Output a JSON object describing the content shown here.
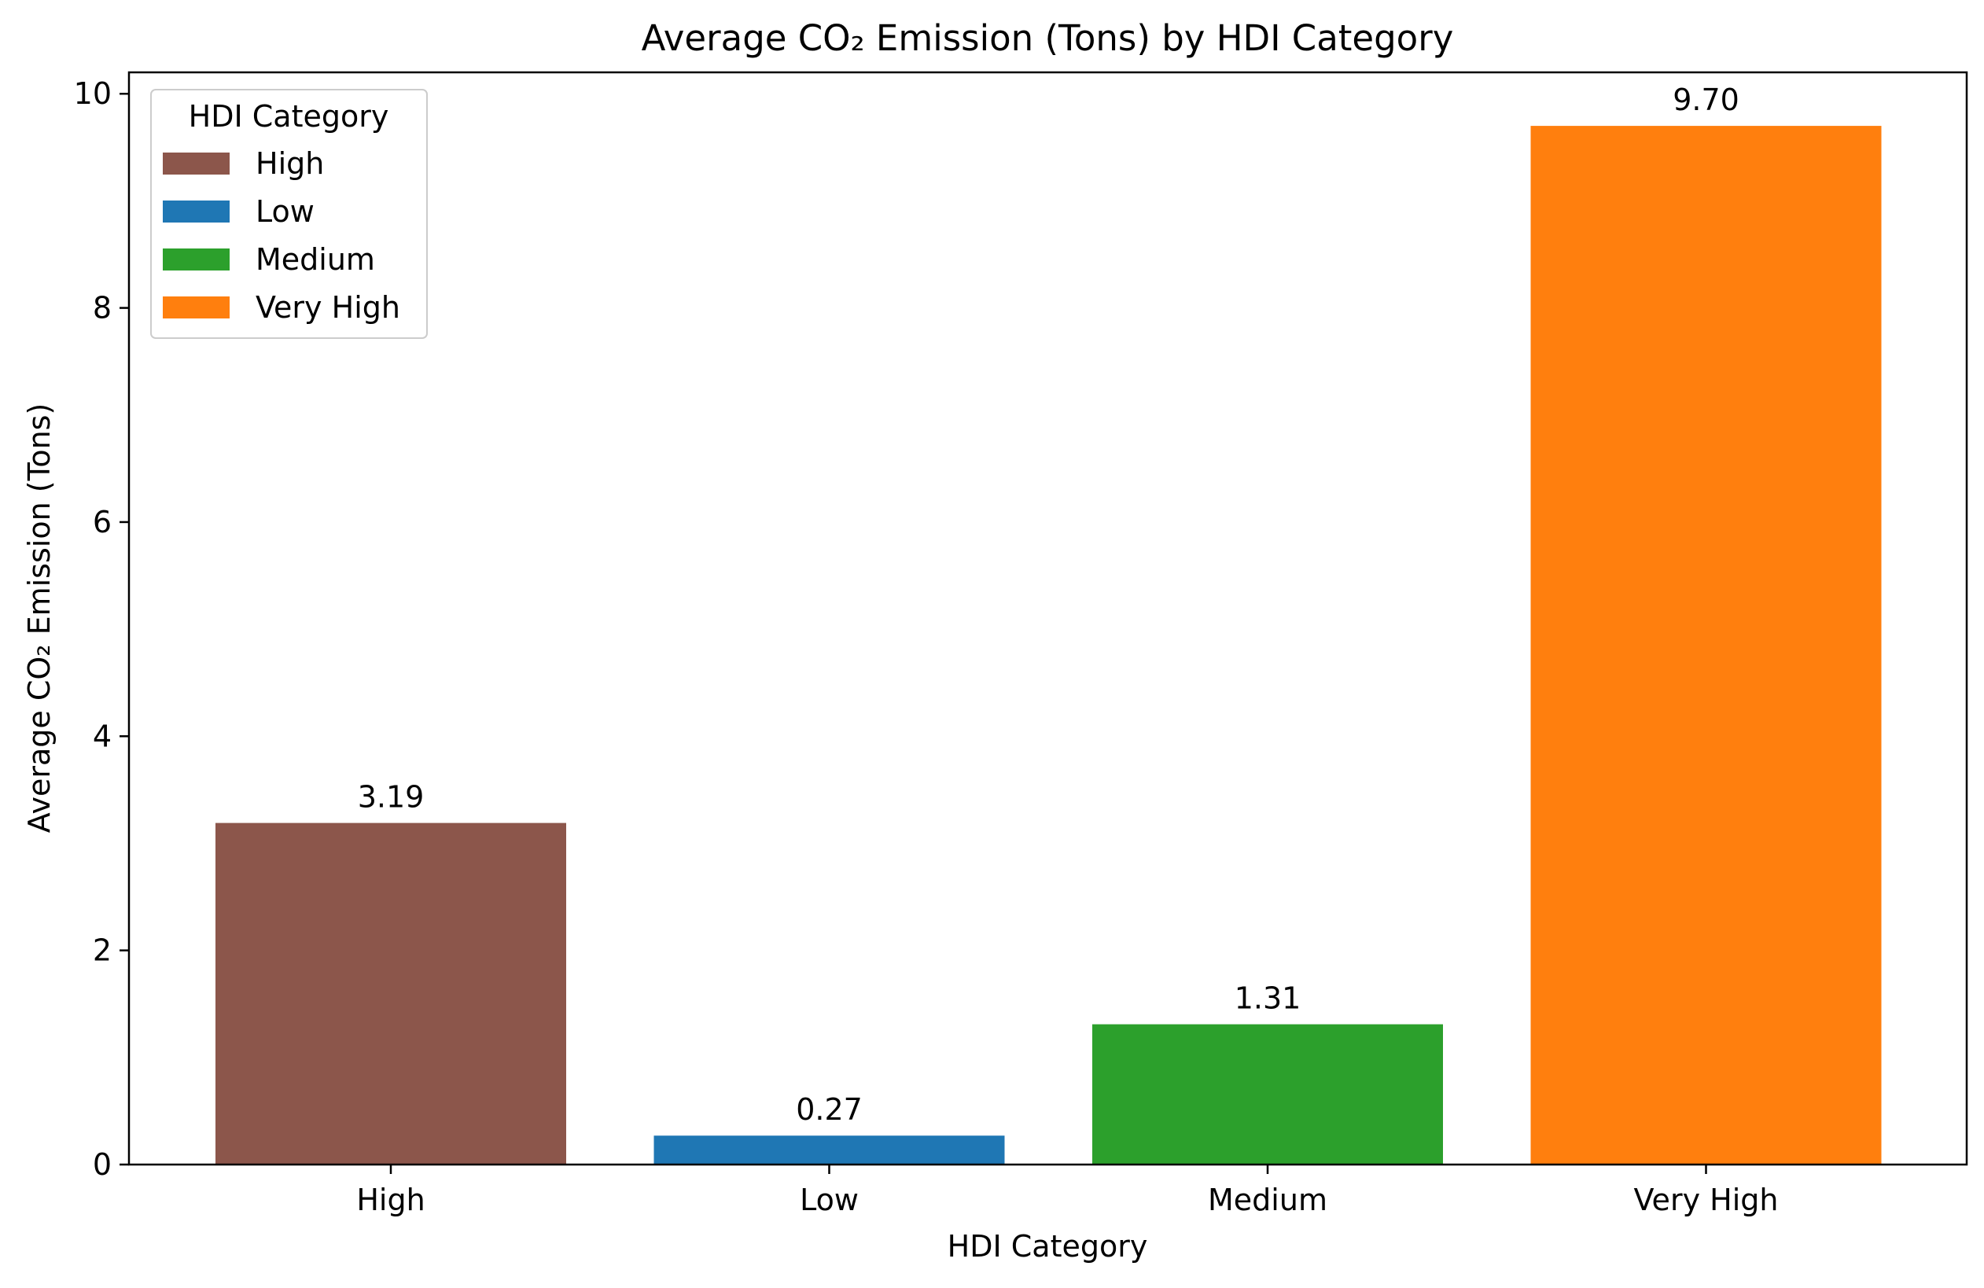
{
  "chart_data": {
    "type": "bar",
    "title": "Average CO₂ Emission (Tons) by HDI Category",
    "xlabel": "HDI Category",
    "ylabel": "Average CO₂ Emission (Tons)",
    "categories": [
      "High",
      "Low",
      "Medium",
      "Very High"
    ],
    "values": [
      3.19,
      0.27,
      1.31,
      9.7
    ],
    "value_labels": [
      "3.19",
      "0.27",
      "1.31",
      "9.70"
    ],
    "colors": [
      "#8c564b",
      "#1f77b4",
      "#2ca02c",
      "#ff7f0e"
    ],
    "ylim": [
      0,
      10.2
    ],
    "yticks": [
      0,
      2,
      4,
      6,
      8,
      10
    ],
    "ytick_labels": [
      "0",
      "2",
      "4",
      "6",
      "8",
      "10"
    ],
    "grid": false,
    "legend": {
      "title": "HDI Category",
      "placement": "top-left",
      "entries": [
        "High",
        "Low",
        "Medium",
        "Very High"
      ]
    }
  }
}
